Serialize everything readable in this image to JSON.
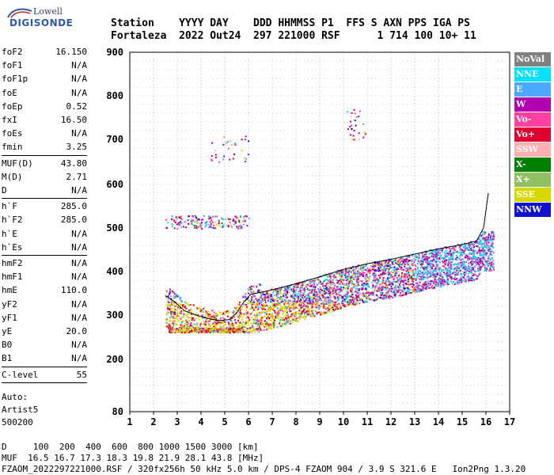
{
  "logo": {
    "line1": "Lowell",
    "line2": "DIGISONDE"
  },
  "header": {
    "line1": "Station    YYYY DAY    DDD HHMMSS P1  FFS S AXN PPS IGA PS",
    "line2": "Fortaleza  2022 Out24  297 221000 RSF      1 714 100 10+ 11"
  },
  "params": [
    {
      "k": "foF2",
      "v": "16.150"
    },
    {
      "k": "foF1",
      "v": "N/A"
    },
    {
      "k": "foF1p",
      "v": "N/A"
    },
    {
      "k": "foE",
      "v": "N/A"
    },
    {
      "k": "foEp",
      "v": "0.52"
    },
    {
      "k": "fxI",
      "v": "16.50"
    },
    {
      "k": "foEs",
      "v": "N/A"
    },
    {
      "k": "fmin",
      "v": "3.25"
    },
    {
      "k": "MUF(D)",
      "v": "43.80"
    },
    {
      "k": "M(D)",
      "v": "2.71"
    },
    {
      "k": "D",
      "v": "N/A"
    },
    {
      "k": "h`F",
      "v": "285.0"
    },
    {
      "k": "h`F2",
      "v": "285.0"
    },
    {
      "k": "h`E",
      "v": "N/A"
    },
    {
      "k": "h`Es",
      "v": "N/A"
    },
    {
      "k": "hmF2",
      "v": "N/A"
    },
    {
      "k": "hmF1",
      "v": "N/A"
    },
    {
      "k": "hmE",
      "v": "110.0"
    },
    {
      "k": "yF2",
      "v": "N/A"
    },
    {
      "k": "yF1",
      "v": "N/A"
    },
    {
      "k": "yE",
      "v": "20.0"
    },
    {
      "k": "B0",
      "v": "N/A"
    },
    {
      "k": "B1",
      "v": "N/A"
    },
    {
      "k": "C-level",
      "v": "55"
    }
  ],
  "auto": {
    "label": "Auto:",
    "artist": "Artist5",
    "version": "500200"
  },
  "legend": [
    {
      "label": "NoVal",
      "bg": "#808080",
      "fg": "#ffffff"
    },
    {
      "label": "NNE",
      "bg": "#00e0ff",
      "fg": "#ffffff"
    },
    {
      "label": "E",
      "bg": "#4aa8ff",
      "fg": "#ffffff"
    },
    {
      "label": "W",
      "bg": "#b000b0",
      "fg": "#ffffff"
    },
    {
      "label": "Vo-",
      "bg": "#ff40a0",
      "fg": "#ffffff"
    },
    {
      "label": "Vo+",
      "bg": "#e00030",
      "fg": "#ffffff"
    },
    {
      "label": "SSW",
      "bg": "#ffb0b0",
      "fg": "#ffffff"
    },
    {
      "label": "X-",
      "bg": "#008000",
      "fg": "#ffffff"
    },
    {
      "label": "X+",
      "bg": "#90c060",
      "fg": "#ffffff"
    },
    {
      "label": "SSE",
      "bg": "#d8d800",
      "fg": "#ffffff"
    },
    {
      "label": "NNW",
      "bg": "#1010d0",
      "fg": "#ffffff"
    }
  ],
  "chart_data": {
    "type": "scatter",
    "xlim": [
      1,
      17
    ],
    "ylim": [
      80,
      900
    ],
    "x_ticks": [
      "1",
      "2",
      "3",
      "4",
      "5",
      "6",
      "7",
      "8",
      "9",
      "10",
      "11",
      "12",
      "13",
      "14",
      "15",
      "16",
      "17"
    ],
    "y_ticks": [
      "80",
      "200",
      "300",
      "400",
      "500",
      "600",
      "700",
      "800",
      "900"
    ],
    "grid": true,
    "trace": [
      [
        2.5,
        345
      ],
      [
        2.9,
        330
      ],
      [
        3.3,
        310
      ],
      [
        3.8,
        300
      ],
      [
        4.3,
        292
      ],
      [
        4.8,
        288
      ],
      [
        5.2,
        290
      ],
      [
        5.5,
        305
      ],
      [
        5.8,
        330
      ],
      [
        6.1,
        348
      ],
      [
        6.5,
        352
      ],
      [
        7.0,
        358
      ],
      [
        8.0,
        372
      ],
      [
        9.0,
        388
      ],
      [
        10.0,
        405
      ],
      [
        11.0,
        418
      ],
      [
        12.0,
        428
      ],
      [
        13.0,
        440
      ],
      [
        14.0,
        452
      ],
      [
        15.0,
        462
      ],
      [
        15.6,
        470
      ],
      [
        15.9,
        500
      ],
      [
        16.1,
        580
      ]
    ]
  },
  "footer": {
    "line1": "D     100  200  400  600  800 1000 1500 3000 [km]",
    "line2": "MUF  16.5 16.7 17.3 18.3 19.8 21.9 28.1 43.8 [MHz]",
    "line3": "FZAOM_2022297221000.RSF / 320fx256h 50 kHz 5.0 km / DPS-4 FZAOM 904 / 3.9 S 321.6 E   Ion2Png 1.3.20"
  }
}
